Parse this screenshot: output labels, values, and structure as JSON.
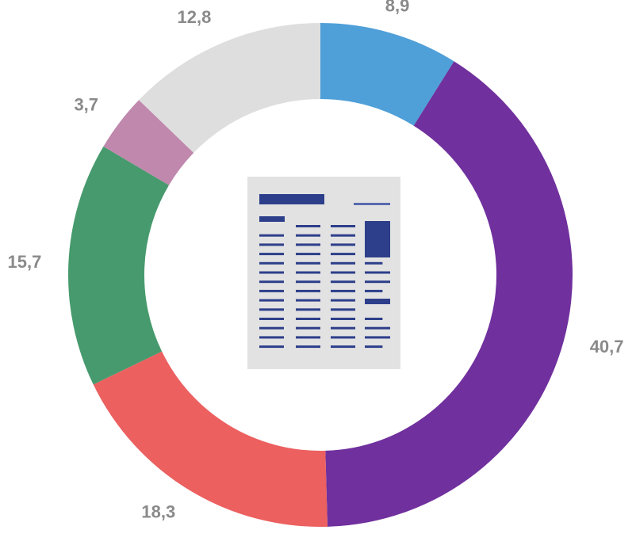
{
  "chart_data": {
    "type": "donut",
    "values": [
      8.9,
      40.7,
      18.3,
      15.7,
      3.7,
      12.8
    ],
    "value_labels": [
      "8,9",
      "40,7",
      "18,3",
      "15,7",
      "3,7",
      "12,8"
    ],
    "colors": [
      "#4f9fd8",
      "#70309d",
      "#ec6060",
      "#479a6d",
      "#c088ad",
      "#dedede"
    ]
  }
}
